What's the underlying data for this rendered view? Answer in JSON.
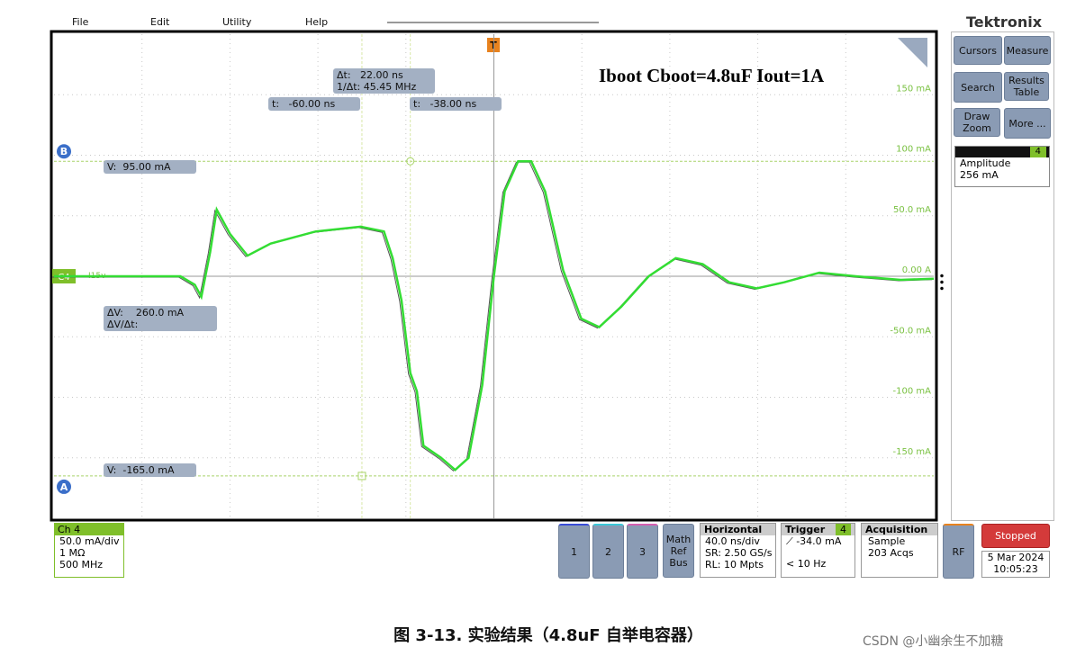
{
  "menu": [
    "File",
    "Edit",
    "Utility",
    "Help"
  ],
  "brand": "Tektronix",
  "buttons": [
    "Cursors",
    "Measure",
    "Search",
    "Results Table",
    "Draw Zoom",
    "More ..."
  ],
  "measurement": {
    "channel": "4",
    "name": "Amplitude",
    "value": "256 mA"
  },
  "plot": {
    "type": "line",
    "title": "Iboot Cboot=4.8uF Iout=1A",
    "color": "#33dd33",
    "x": [
      -200,
      -175,
      -142.5,
      -136,
      -133,
      -129,
      -126,
      -120,
      -112,
      -101.5,
      -81,
      -60.6,
      -50,
      -46,
      -42,
      -38,
      -35,
      -32,
      -24,
      -17.6,
      -11.5,
      -5.3,
      0,
      4.9,
      11,
      17,
      23.3,
      31.5,
      39.7,
      47.9,
      58,
      70.4,
      82.7,
      95,
      107,
      119.5,
      132,
      148,
      164.6,
      185,
      200
    ],
    "values": [
      0,
      0,
      0,
      -7,
      -17,
      20,
      55,
      35,
      17,
      27,
      37,
      41,
      37,
      15,
      -20,
      -80,
      -95,
      -140,
      -150,
      -160,
      -150,
      -90,
      0,
      70,
      95,
      95,
      70,
      5,
      -35,
      -42,
      -25,
      0,
      15,
      10,
      -5,
      -10,
      -5,
      3,
      0,
      -3,
      -2
    ],
    "xlim": [
      -200,
      200
    ],
    "ylim": [
      -200,
      200
    ],
    "yticks": [
      {
        "value": 150,
        "label": "150 mA"
      },
      {
        "value": 100,
        "label": "100 mA"
      },
      {
        "value": 50,
        "label": "50.0 mA"
      },
      {
        "value": 0,
        "label": "0.00 A"
      },
      {
        "value": -50,
        "label": "-50.0 mA"
      },
      {
        "value": -100,
        "label": "-100 mA"
      },
      {
        "value": -150,
        "label": "-150 mA"
      }
    ],
    "channel_marker": "C4",
    "ref_label": "I15v"
  },
  "cursors": {
    "a_label": "A",
    "b_label": "B",
    "dt_label": "Δt:",
    "dt": "22.00 ns",
    "inv_label": "1/Δt:",
    "inv": "45.45 MHz",
    "t_prefix": "t:",
    "v_prefix": "V:",
    "t1": {
      "value": -60,
      "label": "-60.00 ns"
    },
    "t2": {
      "value": -38,
      "label": "-38.00 ns"
    },
    "v_b": {
      "value": 95,
      "label": "95.00 mA"
    },
    "v_a": {
      "value": -165,
      "label": "-165.0 mA"
    },
    "dv_label": "ΔV:",
    "dv": "260.0 mA",
    "dvdt_label": "ΔV/Δt:"
  },
  "channel_box": {
    "title": "Ch 4",
    "lines": [
      "50.0 mA/div",
      "1 MΩ",
      "500 MHz"
    ]
  },
  "ch_buttons": [
    "1",
    "2",
    "3"
  ],
  "math": [
    "Math",
    "Ref",
    "Bus"
  ],
  "horizontal": {
    "title": "Horizontal",
    "lines": [
      "40.0 ns/div",
      "SR: 2.50 GS/s",
      "RL: 10 Mpts"
    ]
  },
  "trigger": {
    "title": "Trigger",
    "channel": "4",
    "level": "-34.0 mA",
    "freq": "< 10 Hz"
  },
  "acquisition": {
    "title": "Acquisition",
    "lines": [
      "Sample",
      "203 Acqs"
    ]
  },
  "rf": "RF",
  "status": "Stopped",
  "date": "5 Mar 2024",
  "time": "10:05:23",
  "caption": "图 3-13. 实验结果（4.8uF 自举电容器）",
  "watermark": "CSDN @小幽余生不加糖"
}
